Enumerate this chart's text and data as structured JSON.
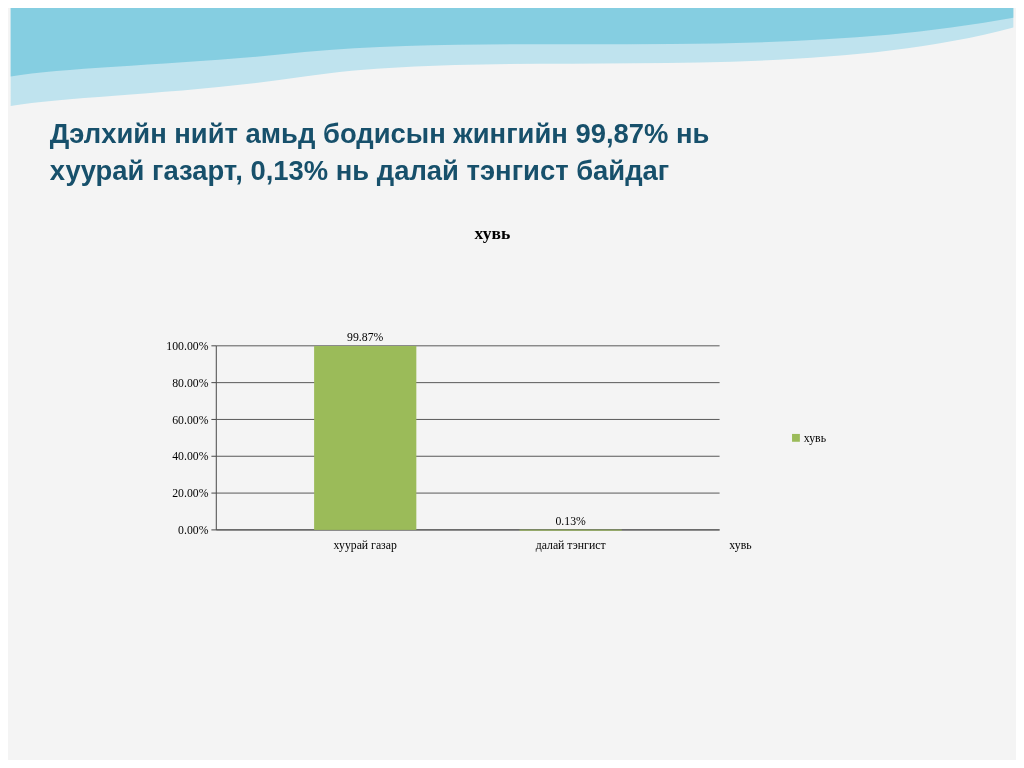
{
  "chart_data": {
    "type": "bar",
    "title": "Дэлхийн нийт амьд бодисын жингийн 99,87% нь хуурай газарт, 0,13% нь далай тэнгист байдаг",
    "subtitle": "хувь",
    "categories": [
      "хуурай газар",
      "далай тэнгист"
    ],
    "series": [
      {
        "name": "хувь",
        "color": "#9bbb59",
        "values": [
          99.87,
          0.13
        ],
        "value_labels": [
          "99.87%",
          "0.13%"
        ]
      }
    ],
    "ylim": [
      0,
      100
    ],
    "yticks": [
      {
        "value": 0,
        "label": "0.00%"
      },
      {
        "value": 20,
        "label": "20.00%"
      },
      {
        "value": 40,
        "label": "40.00%"
      },
      {
        "value": 60,
        "label": "60.00%"
      },
      {
        "value": 80,
        "label": "80.00%"
      },
      {
        "value": 100,
        "label": "100.00%"
      }
    ],
    "grid": true,
    "legend": "right",
    "annotations": [
      "хувь"
    ]
  }
}
